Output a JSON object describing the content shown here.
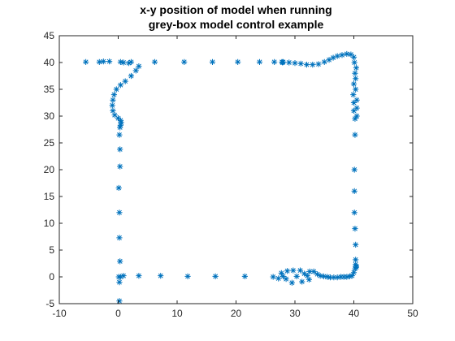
{
  "chart_data": {
    "type": "scatter",
    "title_lines": [
      "x-y position of model when running",
      "grey-box model control example"
    ],
    "xlabel": "",
    "ylabel": "",
    "xlim": [
      -10,
      50
    ],
    "ylim": [
      -5,
      45
    ],
    "xticks": [
      -10,
      0,
      10,
      20,
      30,
      40,
      50
    ],
    "yticks": [
      -5,
      0,
      5,
      10,
      15,
      20,
      25,
      30,
      35,
      40,
      45
    ],
    "grid": false,
    "marker": "asterisk",
    "color": "#0072BD",
    "series": [
      {
        "points": [
          [
            0.2,
            -4.5
          ],
          [
            0.2,
            -1.0
          ],
          [
            0.4,
            0.0
          ],
          [
            0.9,
            0.2
          ],
          [
            3.5,
            0.2
          ],
          [
            7.2,
            0.2
          ],
          [
            11.8,
            0.1
          ],
          [
            16.5,
            0.1
          ],
          [
            21.5,
            0.1
          ],
          [
            26.3,
            0.0
          ],
          [
            27.2,
            -0.3
          ],
          [
            27.7,
            0.7
          ],
          [
            28.0,
            0.1
          ],
          [
            28.5,
            -0.4
          ],
          [
            28.7,
            1.1
          ],
          [
            29.5,
            -1.1
          ],
          [
            29.7,
            1.2
          ],
          [
            30.3,
            0.1
          ],
          [
            30.9,
            1.2
          ],
          [
            31.2,
            -0.9
          ],
          [
            31.6,
            0.6
          ],
          [
            32.1,
            0.2
          ],
          [
            32.4,
            -0.5
          ],
          [
            32.5,
            1.0
          ],
          [
            33.2,
            1.0
          ],
          [
            33.8,
            0.5
          ],
          [
            34.3,
            0.2
          ],
          [
            34.9,
            0.1
          ],
          [
            35.5,
            0.0
          ],
          [
            36.0,
            -0.1
          ],
          [
            36.6,
            -0.1
          ],
          [
            37.2,
            -0.1
          ],
          [
            37.8,
            0.0
          ],
          [
            38.3,
            0.0
          ],
          [
            38.8,
            0.0
          ],
          [
            39.3,
            0.1
          ],
          [
            39.7,
            0.2
          ],
          [
            40.0,
            0.8
          ],
          [
            40.2,
            1.5
          ],
          [
            40.4,
            1.8
          ],
          [
            40.4,
            2.0
          ],
          [
            40.3,
            2.3
          ],
          [
            40.3,
            3.2
          ],
          [
            40.3,
            6.0
          ],
          [
            40.2,
            9.0
          ],
          [
            40.1,
            12.0
          ],
          [
            40.1,
            16.0
          ],
          [
            40.1,
            20.0
          ],
          [
            40.2,
            26.5
          ],
          [
            40.2,
            29.5
          ],
          [
            40.5,
            30.0
          ],
          [
            40.0,
            31.0
          ],
          [
            40.5,
            31.5
          ],
          [
            40.0,
            32.5
          ],
          [
            40.5,
            33.0
          ],
          [
            39.9,
            34.0
          ],
          [
            40.3,
            35.0
          ],
          [
            40.0,
            36.0
          ],
          [
            40.3,
            37.0
          ],
          [
            40.2,
            38.0
          ],
          [
            40.4,
            39.0
          ],
          [
            40.1,
            40.0
          ],
          [
            40.0,
            41.0
          ],
          [
            39.5,
            41.5
          ],
          [
            38.8,
            41.6
          ],
          [
            38.0,
            41.4
          ],
          [
            37.2,
            41.2
          ],
          [
            36.5,
            40.9
          ],
          [
            35.8,
            40.5
          ],
          [
            35.0,
            40.1
          ],
          [
            34.0,
            39.7
          ],
          [
            33.0,
            39.6
          ],
          [
            32.0,
            39.6
          ],
          [
            31.0,
            39.8
          ],
          [
            30.0,
            39.9
          ],
          [
            29.0,
            40.0
          ],
          [
            28.0,
            40.1
          ],
          [
            27.8,
            40.1
          ],
          [
            27.9,
            40.0
          ],
          [
            26.5,
            40.1
          ],
          [
            24.0,
            40.1
          ],
          [
            20.3,
            40.1
          ],
          [
            16.0,
            40.1
          ],
          [
            11.2,
            40.1
          ],
          [
            6.2,
            40.1
          ],
          [
            3.5,
            39.3
          ],
          [
            2.2,
            40.1
          ],
          [
            1.8,
            39.9
          ],
          [
            0.9,
            40.0
          ],
          [
            0.4,
            40.1
          ],
          [
            -1.5,
            40.2
          ],
          [
            -2.5,
            40.2
          ],
          [
            -3.2,
            40.1
          ],
          [
            -5.5,
            40.1
          ],
          [
            3.0,
            38.5
          ],
          [
            2.2,
            37.5
          ],
          [
            1.2,
            36.5
          ],
          [
            0.4,
            35.8
          ],
          [
            -0.3,
            35.0
          ],
          [
            -0.7,
            34.0
          ],
          [
            -0.9,
            33.0
          ],
          [
            -1.0,
            32.0
          ],
          [
            -0.9,
            31.0
          ],
          [
            -0.6,
            30.2
          ],
          [
            0.0,
            29.6
          ],
          [
            0.4,
            29.2
          ],
          [
            0.5,
            28.8
          ],
          [
            0.4,
            28.3
          ],
          [
            0.3,
            27.9
          ],
          [
            0.2,
            26.5
          ],
          [
            0.3,
            23.8
          ],
          [
            0.3,
            20.6
          ],
          [
            0.1,
            16.6
          ],
          [
            0.2,
            12.0
          ],
          [
            0.2,
            7.3
          ],
          [
            0.3,
            2.9
          ],
          [
            0.1,
            0.0
          ]
        ]
      }
    ]
  }
}
